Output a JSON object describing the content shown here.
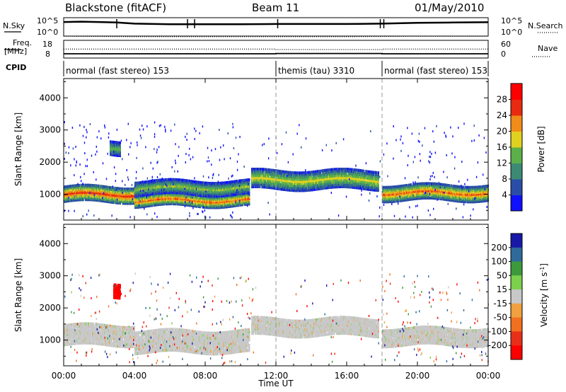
{
  "header": {
    "station": "Blackstone (fitACF)",
    "beam": "Beam 11",
    "date": "01/May/2010"
  },
  "noise_panel": {
    "left_label": "N.Sky",
    "right_label": "N.Search",
    "left_ticks": [
      "10^5",
      "10^0"
    ],
    "right_ticks": [
      "10^5",
      "10^0"
    ]
  },
  "freq_panel": {
    "left_label_1": "Freq.",
    "left_label_2": "[MHz]",
    "right_label": "Nave",
    "left_ticks": [
      "18",
      "8"
    ],
    "right_ticks": [
      "60",
      "0"
    ]
  },
  "cpid_panel": {
    "label": "CPID",
    "segments": [
      {
        "label": "normal (fast stereo) 153",
        "start_hour": 0,
        "end_hour": 12
      },
      {
        "label": "themis (tau) 3310",
        "start_hour": 12,
        "end_hour": 18
      },
      {
        "label": "normal (fast stereo) 153",
        "start_hour": 18,
        "end_hour": 24
      }
    ]
  },
  "x_axis": {
    "label": "Time UT",
    "ticks": [
      "00:00",
      "04:00",
      "08:00",
      "12:00",
      "16:00",
      "20:00",
      "00:00"
    ],
    "range_hours": [
      0,
      24
    ]
  },
  "power_panel": {
    "ylabel": "Slant Range [km]",
    "yticks": [
      "1000",
      "2000",
      "3000",
      "4000"
    ],
    "colorbar_label": "Power [dB]",
    "colorbar_ticks": [
      "4",
      "8",
      "12",
      "16",
      "20",
      "24",
      "28"
    ],
    "colorbar_colors": [
      "#1010ff",
      "#2a4ea8",
      "#3c8a74",
      "#5bb04a",
      "#e0d020",
      "#f08c1a",
      "#e82a10",
      "#ff0000"
    ]
  },
  "velocity_panel": {
    "ylabel": "Slant Range [km]",
    "yticks": [
      "1000",
      "2000",
      "3000",
      "4000"
    ],
    "colorbar_label": "Velocity [m s^-1]",
    "colorbar_ticks": [
      "200",
      "100",
      "50",
      "15",
      "-15",
      "-50",
      "-100",
      "-200"
    ],
    "colorbar_colors": [
      "#1818a8",
      "#2e6a9a",
      "#3c9a3c",
      "#7cd04c",
      "#c8c8c8",
      "#f0a040",
      "#f07020",
      "#e83018",
      "#ff0000"
    ]
  },
  "chart_data": [
    {
      "type": "line",
      "title": "Blackstone (fitACF) Beam 11 01/May/2010",
      "xlabel": "",
      "ylabel": "N.Sky / N.Search",
      "xlim": [
        0,
        24
      ],
      "series": [
        {
          "name": "N.Sky",
          "x": [
            0,
            1,
            2,
            3,
            4,
            6,
            8,
            10,
            12,
            14,
            16,
            18,
            20,
            22,
            24
          ],
          "values": [
            30000,
            40000,
            30000,
            20000,
            8000,
            5000,
            5000,
            5000,
            6000,
            6000,
            6000,
            8000,
            15000,
            20000,
            25000
          ]
        },
        {
          "name": "N.Search",
          "x": [
            0,
            4,
            8,
            12,
            16,
            20,
            24
          ],
          "values": [
            3,
            2,
            2,
            2,
            2,
            3,
            3
          ]
        }
      ]
    },
    {
      "type": "line",
      "title": "",
      "xlabel": "",
      "ylabel": "Freq. [MHz] / Nave",
      "xlim": [
        0,
        24
      ],
      "series": [
        {
          "name": "Freq.",
          "x": [
            0,
            12,
            12,
            18,
            18,
            24
          ],
          "values": [
            10.3,
            10.3,
            10.6,
            10.6,
            10.3,
            10.3
          ]
        },
        {
          "name": "Nave",
          "x": [
            0,
            12,
            12,
            18,
            18,
            24
          ],
          "values": [
            26,
            26,
            23,
            23,
            26,
            26
          ]
        }
      ]
    },
    {
      "type": "heatmap",
      "title": "",
      "xlabel": "Time UT",
      "ylabel": "Slant Range [km]",
      "xlim": [
        0,
        24
      ],
      "ylim": [
        200,
        4600
      ],
      "value_label": "Power [dB]",
      "regions": [
        {
          "t_start": 0.0,
          "t_end": 4.0,
          "range_center_km": 1000,
          "range_width_km": 450,
          "power_db": 26
        },
        {
          "t_start": 2.6,
          "t_end": 3.2,
          "range_center_km": 2450,
          "range_width_km": 400,
          "power_db": 14
        },
        {
          "t_start": 4.0,
          "t_end": 10.5,
          "range_center_km": 820,
          "range_width_km": 350,
          "power_db": 24
        },
        {
          "t_start": 4.0,
          "t_end": 10.5,
          "range_center_km": 1200,
          "range_width_km": 400,
          "power_db": 16
        },
        {
          "t_start": 10.6,
          "t_end": 17.8,
          "range_center_km": 1450,
          "range_width_km": 550,
          "power_db": 18
        },
        {
          "t_start": 18.0,
          "t_end": 24.0,
          "range_center_km": 1050,
          "range_width_km": 450,
          "power_db": 24
        }
      ]
    },
    {
      "type": "heatmap",
      "title": "",
      "xlabel": "Time UT",
      "ylabel": "Slant Range [km]",
      "xlim": [
        0,
        24
      ],
      "ylim": [
        200,
        4600
      ],
      "value_label": "Velocity [m s^-1]",
      "regions": [
        {
          "t_start": 0.0,
          "t_end": 4.0,
          "range_center_km": 1150,
          "range_width_km": 600,
          "velocity": 0
        },
        {
          "t_start": 2.8,
          "t_end": 3.2,
          "range_center_km": 2550,
          "range_width_km": 400,
          "velocity": -200
        },
        {
          "t_start": 4.0,
          "t_end": 10.5,
          "range_center_km": 950,
          "range_width_km": 650,
          "velocity": 0
        },
        {
          "t_start": 10.6,
          "t_end": 17.8,
          "range_center_km": 1400,
          "range_width_km": 500,
          "velocity": 0
        },
        {
          "t_start": 18.0,
          "t_end": 24.0,
          "range_center_km": 1100,
          "range_width_km": 500,
          "velocity": 0
        }
      ]
    }
  ]
}
